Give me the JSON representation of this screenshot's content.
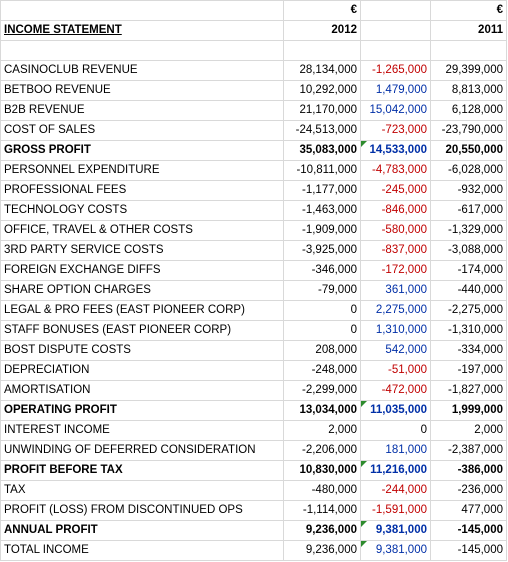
{
  "header": {
    "currency_2012": "€",
    "currency_2011": "€",
    "title": "INCOME STATEMENT",
    "year_2012": "2012",
    "year_2011": "2011"
  },
  "rows": [
    {
      "label": "CASINOCLUB REVENUE",
      "v2012": "28,134,000",
      "var": "-1,265,000",
      "v2011": "29,399,000",
      "bold": false,
      "flag": false
    },
    {
      "label": "BETBOO REVENUE",
      "v2012": "10,292,000",
      "var": "1,479,000",
      "v2011": "8,813,000",
      "bold": false,
      "flag": false
    },
    {
      "label": "B2B REVENUE",
      "v2012": "21,170,000",
      "var": "15,042,000",
      "v2011": "6,128,000",
      "bold": false,
      "flag": false
    },
    {
      "label": "COST OF SALES",
      "v2012": "-24,513,000",
      "var": "-723,000",
      "v2011": "-23,790,000",
      "bold": false,
      "flag": false
    },
    {
      "label": "GROSS PROFIT",
      "v2012": "35,083,000",
      "var": "14,533,000",
      "v2011": "20,550,000",
      "bold": true,
      "flag": true
    },
    {
      "label": "PERSONNEL EXPENDITURE",
      "v2012": "-10,811,000",
      "var": "-4,783,000",
      "v2011": "-6,028,000",
      "bold": false,
      "flag": false
    },
    {
      "label": "PROFESSIONAL FEES",
      "v2012": "-1,177,000",
      "var": "-245,000",
      "v2011": "-932,000",
      "bold": false,
      "flag": false
    },
    {
      "label": "TECHNOLOGY COSTS",
      "v2012": "-1,463,000",
      "var": "-846,000",
      "v2011": "-617,000",
      "bold": false,
      "flag": false
    },
    {
      "label": "OFFICE, TRAVEL & OTHER COSTS",
      "v2012": "-1,909,000",
      "var": "-580,000",
      "v2011": "-1,329,000",
      "bold": false,
      "flag": false
    },
    {
      "label": "3RD PARTY SERVICE COSTS",
      "v2012": "-3,925,000",
      "var": "-837,000",
      "v2011": "-3,088,000",
      "bold": false,
      "flag": false
    },
    {
      "label": "FOREIGN EXCHANGE DIFFS",
      "v2012": "-346,000",
      "var": "-172,000",
      "v2011": "-174,000",
      "bold": false,
      "flag": false
    },
    {
      "label": "SHARE OPTION CHARGES",
      "v2012": "-79,000",
      "var": "361,000",
      "v2011": "-440,000",
      "bold": false,
      "flag": false
    },
    {
      "label": "LEGAL & PRO FEES (EAST PIONEER CORP)",
      "v2012": "0",
      "var": "2,275,000",
      "v2011": "-2,275,000",
      "bold": false,
      "flag": false
    },
    {
      "label": "STAFF BONUSES (EAST PIONEER CORP)",
      "v2012": "0",
      "var": "1,310,000",
      "v2011": "-1,310,000",
      "bold": false,
      "flag": false
    },
    {
      "label": "BOST DISPUTE COSTS",
      "v2012": "208,000",
      "var": "542,000",
      "v2011": "-334,000",
      "bold": false,
      "flag": false
    },
    {
      "label": "DEPRECIATION",
      "v2012": "-248,000",
      "var": "-51,000",
      "v2011": "-197,000",
      "bold": false,
      "flag": false
    },
    {
      "label": "AMORTISATION",
      "v2012": "-2,299,000",
      "var": "-472,000",
      "v2011": "-1,827,000",
      "bold": false,
      "flag": false
    },
    {
      "label": "OPERATING PROFIT",
      "v2012": "13,034,000",
      "var": "11,035,000",
      "v2011": "1,999,000",
      "bold": true,
      "flag": true
    },
    {
      "label": "INTEREST INCOME",
      "v2012": "2,000",
      "var": "0",
      "v2011": "2,000",
      "bold": false,
      "flag": false
    },
    {
      "label": "UNWINDING OF DEFERRED CONSIDERATION",
      "v2012": "-2,206,000",
      "var": "181,000",
      "v2011": "-2,387,000",
      "bold": false,
      "flag": false
    },
    {
      "label": "PROFIT BEFORE TAX",
      "v2012": "10,830,000",
      "var": "11,216,000",
      "v2011": "-386,000",
      "bold": true,
      "flag": true
    },
    {
      "label": "TAX",
      "v2012": "-480,000",
      "var": "-244,000",
      "v2011": "-236,000",
      "bold": false,
      "flag": false
    },
    {
      "label": "PROFIT (LOSS) FROM DISCONTINUED OPS",
      "v2012": "-1,114,000",
      "var": "-1,591,000",
      "v2011": "477,000",
      "bold": false,
      "flag": false
    },
    {
      "label": "ANNUAL PROFIT",
      "v2012": "9,236,000",
      "var": "9,381,000",
      "v2011": "-145,000",
      "bold": true,
      "flag": true
    },
    {
      "label": "TOTAL INCOME",
      "v2012": "9,236,000",
      "var": "9,381,000",
      "v2011": "-145,000",
      "bold": false,
      "flag": true
    }
  ],
  "colors": {
    "negative_variance": "#c00000",
    "positive_variance": "#002fa7",
    "gridline": "#d9d9d9",
    "comment_flag": "#2e8b2e"
  }
}
